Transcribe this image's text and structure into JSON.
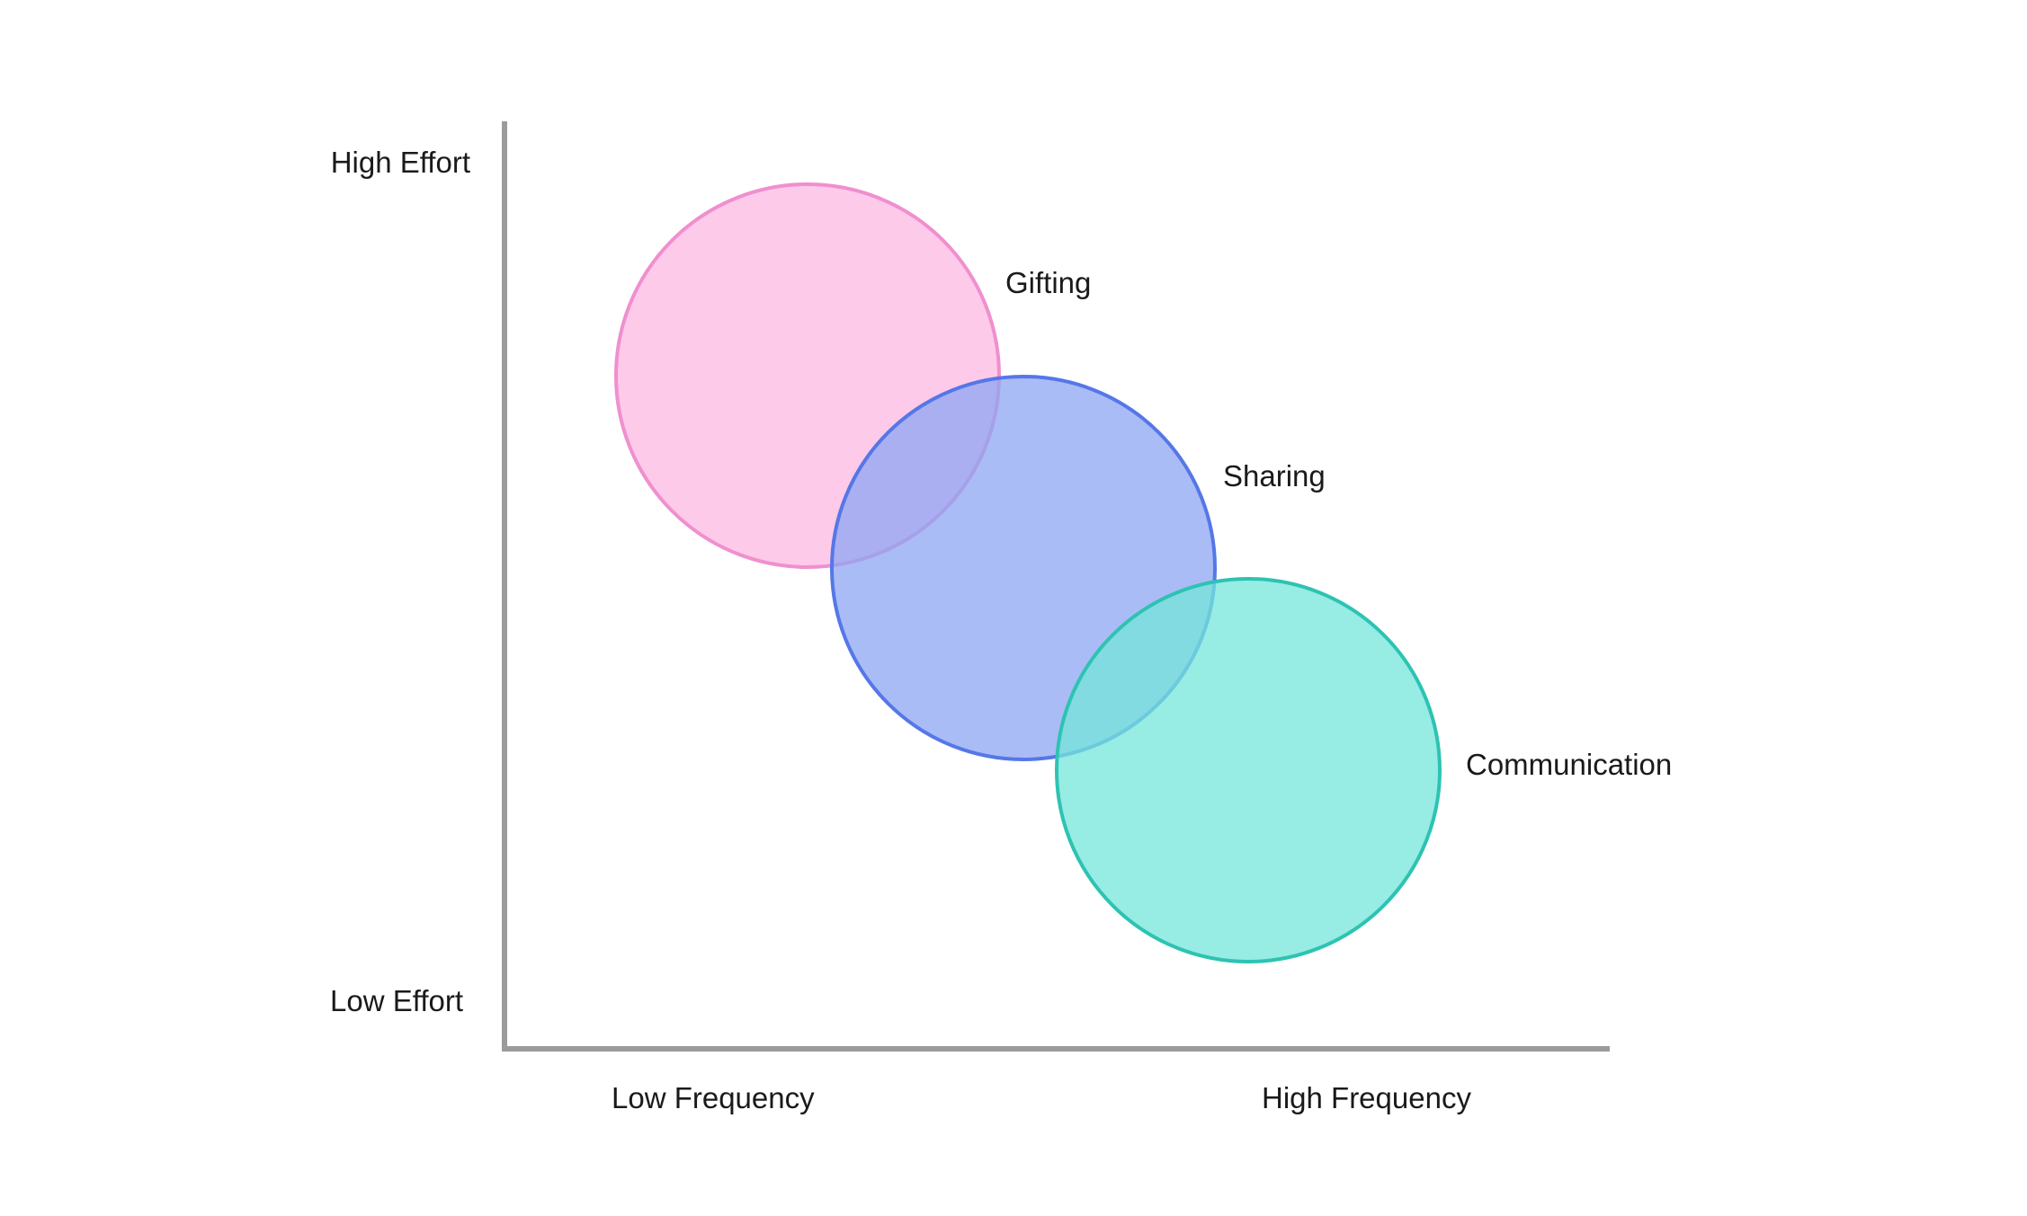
{
  "axes": {
    "y_high_label": "High Effort",
    "y_low_label": "Low Effort",
    "x_low_label": "Low Frequency",
    "x_high_label": "High Frequency",
    "axis_color": "#9b9b9b"
  },
  "bubbles": [
    {
      "label": "Gifting",
      "fill": "#fcb8e2",
      "stroke": "#f08fcf",
      "opacity": 0.75
    },
    {
      "label": "Sharing",
      "fill": "#8ea6f3",
      "stroke": "#5577e8",
      "opacity": 0.75
    },
    {
      "label": "Communication",
      "fill": "#74e6da",
      "stroke": "#2dc3b2",
      "opacity": 0.75
    }
  ]
}
